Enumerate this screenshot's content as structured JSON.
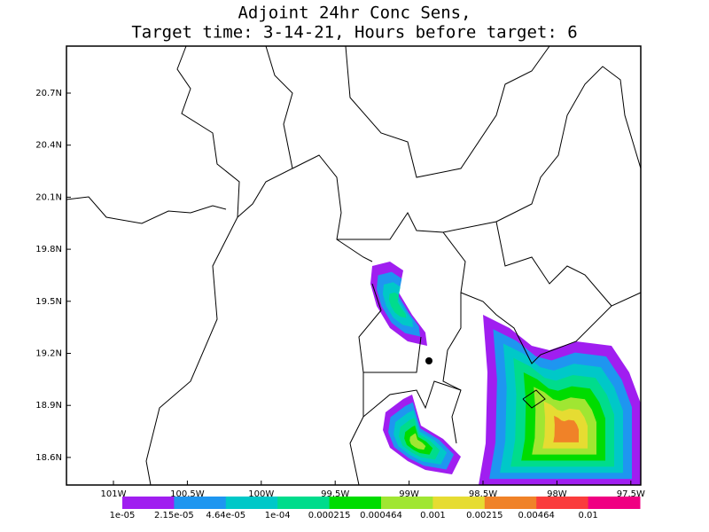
{
  "map": {
    "title": [
      "Adjoint 24hr Conc Sens,",
      "Target time: 3-14-21, Hours before target: 6"
    ],
    "lat_ticks": [
      {
        "value": 20.7,
        "label": "20.7N"
      },
      {
        "value": 20.4,
        "label": "20.4N"
      },
      {
        "value": 20.1,
        "label": "20.1N"
      },
      {
        "value": 19.8,
        "label": "19.8N"
      },
      {
        "value": 19.5,
        "label": "19.5N"
      },
      {
        "value": 19.2,
        "label": "19.2N"
      },
      {
        "value": 18.9,
        "label": "18.9N"
      },
      {
        "value": 18.6,
        "label": "18.6N"
      }
    ],
    "lon_ticks": [
      {
        "value": -101,
        "label": "101W"
      },
      {
        "value": -100.5,
        "label": "100.5W"
      },
      {
        "value": -100,
        "label": "100W"
      },
      {
        "value": -99.5,
        "label": "99.5W"
      },
      {
        "value": -99,
        "label": "99W"
      },
      {
        "value": -98.5,
        "label": "98.5W"
      },
      {
        "value": -98,
        "label": "98W"
      },
      {
        "value": -97.5,
        "label": "97.5W"
      }
    ],
    "colorbar": {
      "labels": [
        "1e-05",
        "2.15e-05",
        "4.64e-05",
        "1e-04",
        "0.000215",
        "0.000464",
        "0.001",
        "0.00215",
        "0.00464",
        "0.01"
      ],
      "colors": [
        "#a01ef0",
        "#1e96f0",
        "#00c8c8",
        "#00dc8c",
        "#00dc00",
        "#a0e632",
        "#e6dc32",
        "#f08228",
        "#fa3c3c",
        "#f00082"
      ]
    }
  }
}
